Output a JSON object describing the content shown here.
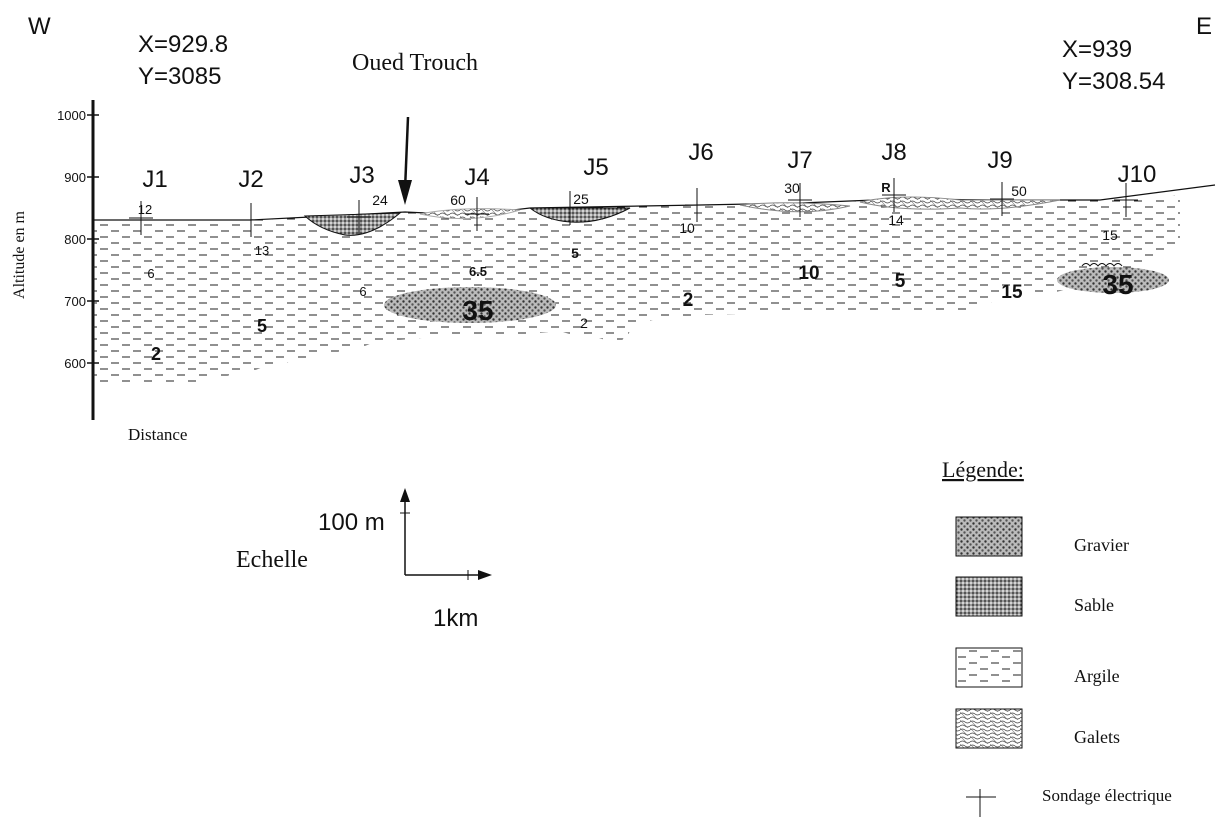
{
  "orientation": {
    "west": "W",
    "east": "E"
  },
  "coordinates": {
    "start": {
      "x": "X=929.8",
      "y": "Y=3085"
    },
    "end": {
      "x": "X=939",
      "y": "Y=308.54"
    }
  },
  "river": "Oued Trouch",
  "axis": {
    "label": "Altitude en m",
    "ticks": [
      1000,
      900,
      800,
      700,
      600
    ],
    "x_label": "Distance"
  },
  "soundings": [
    "J1",
    "J2",
    "J3",
    "J4",
    "J5",
    "J6",
    "J7",
    "J8",
    "J9",
    "J10"
  ],
  "resistivities": [
    12,
    13,
    6,
    5,
    2,
    24,
    6,
    35,
    60,
    6.5,
    25,
    5,
    2,
    10,
    2,
    30,
    10,
    "R",
    14,
    5,
    50,
    15,
    15,
    35
  ],
  "scale": {
    "title": "Echelle",
    "vertical": "100 m",
    "horizontal": "1km"
  },
  "legend": {
    "title": "Légende:",
    "items": [
      "Gravier",
      "Sable",
      "Argile",
      "Galets",
      "Sondage électrique"
    ]
  }
}
